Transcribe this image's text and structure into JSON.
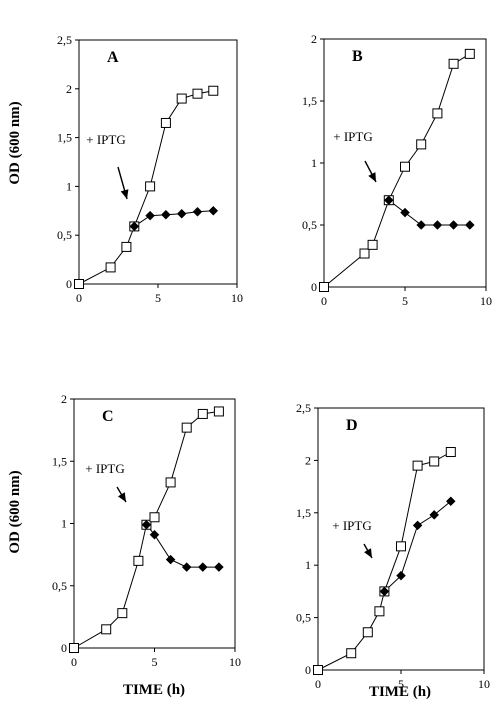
{
  "figure": {
    "ylabel": "OD (600 nm)",
    "xlabel": "TIME (h)"
  },
  "chart_data": [
    {
      "type": "line",
      "panel": "A",
      "annotation": "+ IPTG",
      "xlim": [
        0,
        10
      ],
      "ylim": [
        0,
        2.5
      ],
      "x_ticks": [
        "0",
        "5",
        "10"
      ],
      "y_ticks": [
        "0",
        "0,5",
        "1",
        "1,5",
        "2",
        "2,5"
      ],
      "series": [
        {
          "marker": "open-square",
          "x": [
            0,
            2,
            3,
            3.5,
            4.5,
            5.5,
            6.5,
            7.5,
            8.5
          ],
          "y": [
            0,
            0.17,
            0.38,
            0.59,
            1.0,
            1.65,
            1.9,
            1.95,
            1.98
          ]
        },
        {
          "marker": "filled-diamond",
          "x": [
            3.5,
            4.5,
            5.5,
            6.5,
            7.5,
            8.5
          ],
          "y": [
            0.59,
            0.7,
            0.71,
            0.72,
            0.74,
            0.75
          ]
        }
      ]
    },
    {
      "type": "line",
      "panel": "B",
      "annotation": "+ IPTG",
      "xlim": [
        0,
        10
      ],
      "ylim": [
        0,
        2
      ],
      "x_ticks": [
        "0",
        "5",
        "10"
      ],
      "y_ticks": [
        "0",
        "0,5",
        "1",
        "1,5",
        "2"
      ],
      "series": [
        {
          "marker": "open-square",
          "x": [
            0,
            2.5,
            3,
            4,
            5,
            6,
            7,
            8,
            9
          ],
          "y": [
            0,
            0.27,
            0.34,
            0.7,
            0.97,
            1.15,
            1.4,
            1.8,
            1.88
          ]
        },
        {
          "marker": "filled-diamond",
          "x": [
            4,
            5,
            6,
            7,
            8,
            9
          ],
          "y": [
            0.7,
            0.6,
            0.5,
            0.5,
            0.5,
            0.5
          ]
        }
      ]
    },
    {
      "type": "line",
      "panel": "C",
      "annotation": "+ IPTG",
      "xlim": [
        0,
        10
      ],
      "ylim": [
        0,
        2
      ],
      "x_ticks": [
        "0",
        "5",
        "10"
      ],
      "y_ticks": [
        "0",
        "0,5",
        "1",
        "1,5",
        "2"
      ],
      "series": [
        {
          "marker": "open-square",
          "x": [
            0,
            2,
            3,
            4,
            4.5,
            5,
            6,
            7,
            8,
            9
          ],
          "y": [
            0,
            0.15,
            0.28,
            0.7,
            0.99,
            1.05,
            1.33,
            1.77,
            1.88,
            1.9
          ]
        },
        {
          "marker": "filled-diamond",
          "x": [
            4.5,
            5,
            6,
            7,
            8,
            9
          ],
          "y": [
            0.99,
            0.91,
            0.71,
            0.65,
            0.65,
            0.65
          ]
        }
      ]
    },
    {
      "type": "line",
      "panel": "D",
      "annotation": "+ IPTG",
      "xlim": [
        0,
        10
      ],
      "ylim": [
        0,
        2.5
      ],
      "x_ticks": [
        "0",
        "5",
        "10"
      ],
      "y_ticks": [
        "0",
        "0,5",
        "1",
        "1,5",
        "2",
        "2,5"
      ],
      "series": [
        {
          "marker": "open-square",
          "x": [
            0,
            2,
            3,
            3.7,
            4,
            5,
            6,
            7,
            8
          ],
          "y": [
            0,
            0.16,
            0.36,
            0.56,
            0.75,
            1.18,
            1.95,
            1.99,
            2.08
          ]
        },
        {
          "marker": "filled-diamond",
          "x": [
            4,
            5,
            6,
            7,
            8
          ],
          "y": [
            0.75,
            0.9,
            1.38,
            1.48,
            1.61
          ]
        }
      ]
    }
  ]
}
